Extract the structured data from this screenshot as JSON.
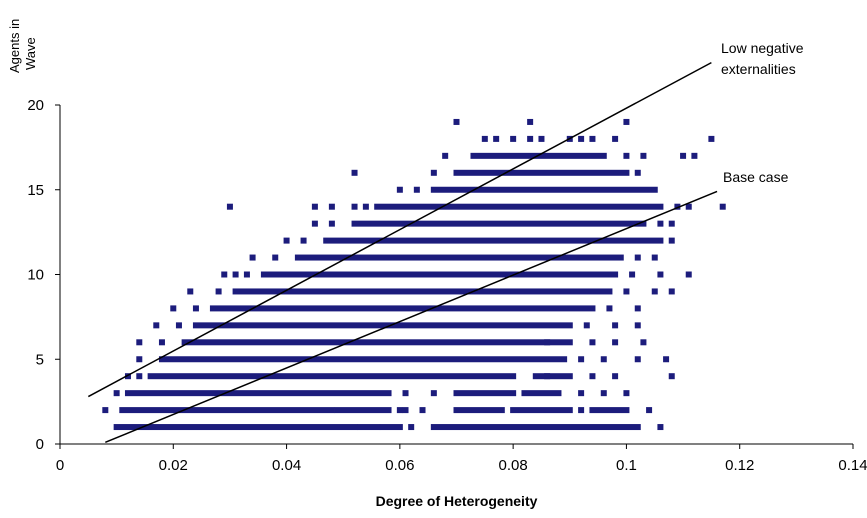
{
  "chart_data": {
    "type": "scatter",
    "title": "",
    "xlabel": "Degree of Heterogeneity",
    "ylabel_lines": [
      "Agents in",
      "Wave"
    ],
    "xlim": [
      0,
      0.14
    ],
    "ylim": [
      0,
      20
    ],
    "x_ticks": [
      "0",
      "0.02",
      "0.04",
      "0.06",
      "0.08",
      "0.1",
      "0.12",
      "0.14"
    ],
    "y_ticks": [
      "0",
      "5",
      "10",
      "15",
      "20"
    ],
    "grid": false,
    "legend": "none",
    "marker_color": "#1c1c7c",
    "line_color": "#000000",
    "trend_lines": [
      {
        "label_lines": [
          "Low negative",
          "externalities"
        ],
        "x": [
          0.005,
          0.115
        ],
        "y": [
          2.8,
          22.5
        ]
      },
      {
        "label_lines": [
          "Base case"
        ],
        "x": [
          0.008,
          0.116
        ],
        "y": [
          0.1,
          14.9
        ]
      }
    ],
    "series": [
      {
        "rows": [
          {
            "y": 1,
            "segments": [
              [
                0.01,
                0.052
              ],
              [
                0.053,
                0.056
              ],
              [
                0.057,
                0.06
              ],
              [
                0.066,
                0.102
              ]
            ],
            "points": [
              0.062,
              0.106
            ]
          },
          {
            "y": 2,
            "segments": [
              [
                0.011,
                0.048
              ],
              [
                0.049,
                0.058
              ],
              [
                0.07,
                0.078
              ],
              [
                0.08,
                0.09
              ],
              [
                0.094,
                0.1
              ]
            ],
            "points": [
              0.008,
              0.06,
              0.061,
              0.064,
              0.092,
              0.104
            ]
          },
          {
            "y": 3,
            "segments": [
              [
                0.012,
                0.058
              ],
              [
                0.07,
                0.08
              ],
              [
                0.082,
                0.088
              ]
            ],
            "points": [
              0.01,
              0.061,
              0.066,
              0.092,
              0.096,
              0.1
            ]
          },
          {
            "y": 4,
            "segments": [
              [
                0.016,
                0.08
              ],
              [
                0.084,
                0.09
              ]
            ],
            "points": [
              0.012,
              0.014,
              0.086,
              0.094,
              0.098,
              0.108
            ]
          },
          {
            "y": 5,
            "segments": [
              [
                0.018,
                0.089
              ]
            ],
            "points": [
              0.014,
              0.092,
              0.096,
              0.102,
              0.107
            ]
          },
          {
            "y": 6,
            "segments": [
              [
                0.022,
                0.09
              ]
            ],
            "points": [
              0.014,
              0.018,
              0.086,
              0.094,
              0.098,
              0.103
            ]
          },
          {
            "y": 7,
            "segments": [
              [
                0.024,
                0.09
              ]
            ],
            "points": [
              0.017,
              0.021,
              0.093,
              0.098,
              0.102
            ]
          },
          {
            "y": 8,
            "segments": [
              [
                0.027,
                0.094
              ]
            ],
            "points": [
              0.02,
              0.024,
              0.097,
              0.102
            ]
          },
          {
            "y": 9,
            "segments": [
              [
                0.031,
                0.097
              ]
            ],
            "points": [
              0.023,
              0.028,
              0.1,
              0.105,
              0.108
            ]
          },
          {
            "y": 10,
            "segments": [
              [
                0.036,
                0.098
              ]
            ],
            "points": [
              0.029,
              0.031,
              0.033,
              0.101,
              0.106,
              0.111
            ]
          },
          {
            "y": 11,
            "segments": [
              [
                0.042,
                0.099
              ]
            ],
            "points": [
              0.034,
              0.038,
              0.102,
              0.105
            ]
          },
          {
            "y": 12,
            "segments": [
              [
                0.047,
                0.106
              ]
            ],
            "points": [
              0.04,
              0.043,
              0.108
            ]
          },
          {
            "y": 13,
            "segments": [
              [
                0.052,
                0.103
              ]
            ],
            "points": [
              0.045,
              0.048,
              0.106,
              0.108
            ]
          },
          {
            "y": 14,
            "segments": [
              [
                0.056,
                0.106
              ]
            ],
            "points": [
              0.03,
              0.045,
              0.048,
              0.052,
              0.054,
              0.109,
              0.111,
              0.117
            ]
          },
          {
            "y": 15,
            "segments": [
              [
                0.066,
                0.105
              ]
            ],
            "points": [
              0.06,
              0.063
            ]
          },
          {
            "y": 16,
            "segments": [
              [
                0.07,
                0.1
              ]
            ],
            "points": [
              0.052,
              0.066,
              0.102
            ]
          },
          {
            "y": 17,
            "segments": [
              [
                0.073,
                0.096
              ]
            ],
            "points": [
              0.068,
              0.1,
              0.103,
              0.11,
              0.112
            ]
          },
          {
            "y": 18,
            "segments": [],
            "points": [
              0.075,
              0.077,
              0.08,
              0.083,
              0.085,
              0.09,
              0.092,
              0.094,
              0.098,
              0.115
            ]
          },
          {
            "y": 19,
            "segments": [],
            "points": [
              0.07,
              0.083,
              0.1
            ]
          }
        ]
      }
    ]
  }
}
